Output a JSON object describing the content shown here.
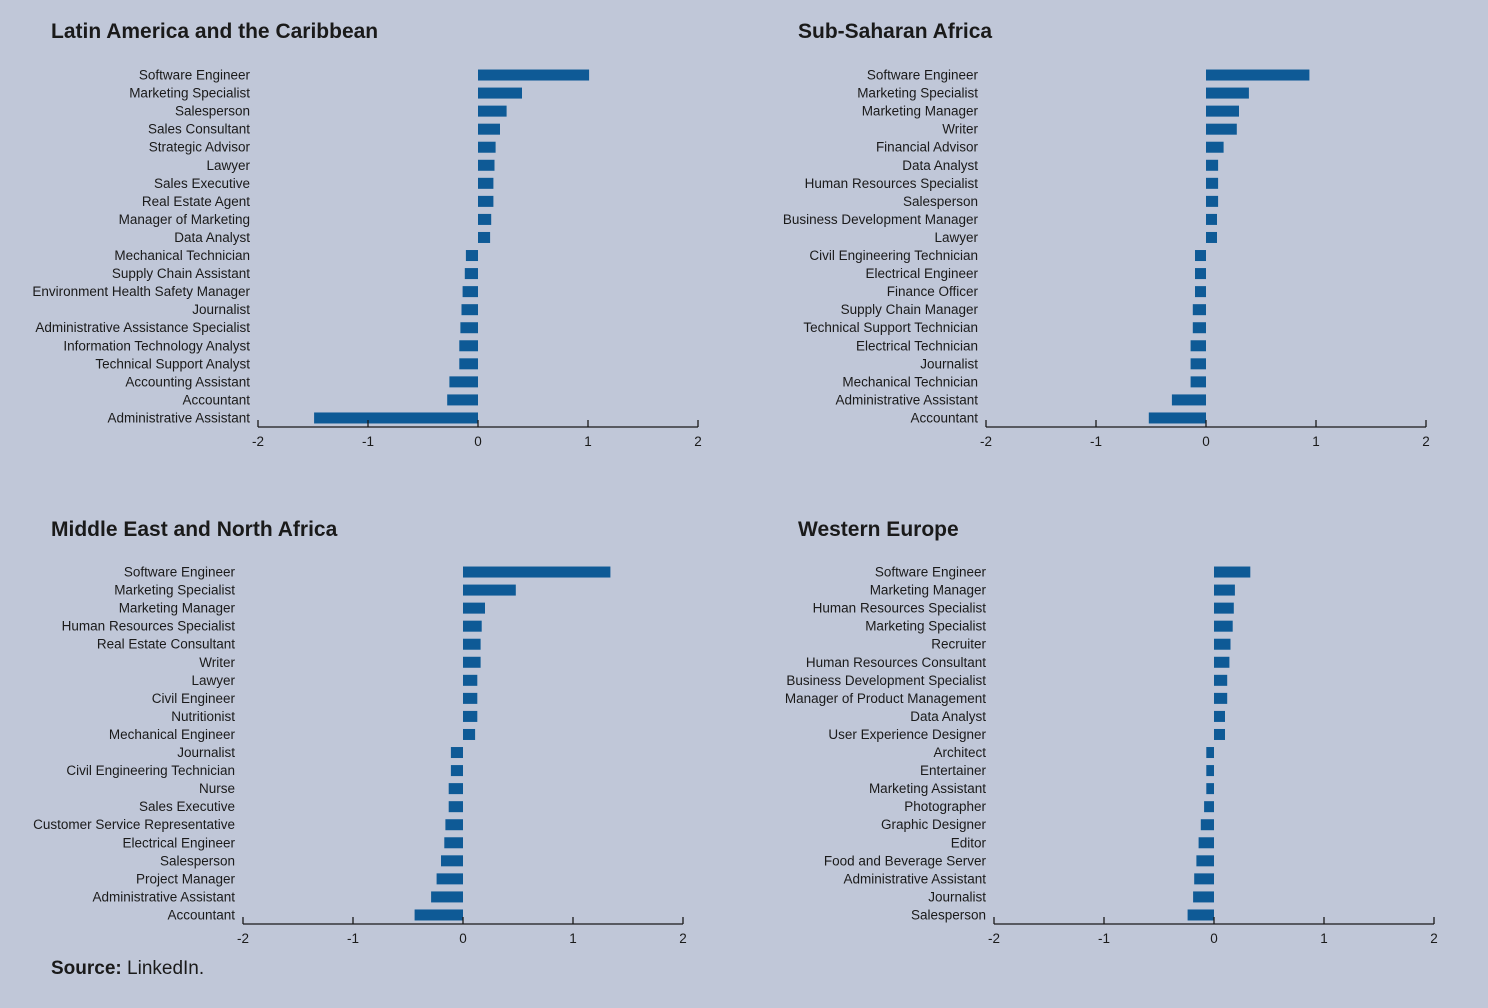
{
  "chart_data": [
    {
      "type": "bar",
      "orientation": "horizontal",
      "title": "Latin America and the Caribbean",
      "xlim": [
        -2,
        2
      ],
      "xticks": [
        -2,
        -1,
        0,
        1,
        2
      ],
      "color": "#0e5a96",
      "categories": [
        "Software Engineer",
        "Marketing Specialist",
        "Salesperson",
        "Sales Consultant",
        "Strategic Advisor",
        "Lawyer",
        "Sales Executive",
        "Real Estate Agent",
        "Manager of Marketing",
        "Data Analyst",
        "Mechanical Technician",
        "Supply Chain Assistant",
        "Environment Health Safety Manager",
        "Journalist",
        "Administrative Assistance Specialist",
        "Information Technology Analyst",
        "Technical Support Analyst",
        "Accounting Assistant",
        "Accountant",
        "Administrative Assistant"
      ],
      "values": [
        1.01,
        0.4,
        0.26,
        0.2,
        0.16,
        0.15,
        0.14,
        0.14,
        0.12,
        0.11,
        -0.11,
        -0.12,
        -0.14,
        -0.15,
        -0.16,
        -0.17,
        -0.17,
        -0.26,
        -0.28,
        -1.49
      ]
    },
    {
      "type": "bar",
      "orientation": "horizontal",
      "title": "Sub-Saharan Africa",
      "xlim": [
        -2,
        2
      ],
      "xticks": [
        -2,
        -1,
        0,
        1,
        2
      ],
      "color": "#0e5a96",
      "categories": [
        "Software Engineer",
        "Marketing Specialist",
        "Marketing Manager",
        "Writer",
        "Financial Advisor",
        "Data Analyst",
        "Human Resources Specialist",
        "Salesperson",
        "Business Development Manager",
        "Lawyer",
        "Civil Engineering Technician",
        "Electrical Engineer",
        "Finance Officer",
        "Supply Chain Manager",
        "Technical Support Technician",
        "Electrical Technician",
        "Journalist",
        "Mechanical Technician",
        "Administrative Assistant",
        "Accountant"
      ],
      "values": [
        0.94,
        0.39,
        0.3,
        0.28,
        0.16,
        0.11,
        0.11,
        0.11,
        0.1,
        0.1,
        -0.1,
        -0.1,
        -0.1,
        -0.12,
        -0.12,
        -0.14,
        -0.14,
        -0.14,
        -0.31,
        -0.52
      ]
    },
    {
      "type": "bar",
      "orientation": "horizontal",
      "title": "Middle East and North Africa",
      "xlim": [
        -2,
        2
      ],
      "xticks": [
        -2,
        -1,
        0,
        1,
        2
      ],
      "color": "#0e5a96",
      "categories": [
        "Software Engineer",
        "Marketing Specialist",
        "Marketing Manager",
        "Human Resources Specialist",
        "Real Estate Consultant",
        "Writer",
        "Lawyer",
        "Civil Engineer",
        "Nutritionist",
        "Mechanical Engineer",
        "Journalist",
        "Civil Engineering Technician",
        "Nurse",
        "Sales Executive",
        "Customer Service Representative",
        "Electrical Engineer",
        "Salesperson",
        "Project Manager",
        "Administrative Assistant",
        "Accountant"
      ],
      "values": [
        1.34,
        0.48,
        0.2,
        0.17,
        0.16,
        0.16,
        0.13,
        0.13,
        0.13,
        0.11,
        -0.11,
        -0.11,
        -0.13,
        -0.13,
        -0.16,
        -0.17,
        -0.2,
        -0.24,
        -0.29,
        -0.44
      ]
    },
    {
      "type": "bar",
      "orientation": "horizontal",
      "title": "Western Europe",
      "xlim": [
        -2,
        2
      ],
      "xticks": [
        -2,
        -1,
        0,
        1,
        2
      ],
      "color": "#0e5a96",
      "categories": [
        "Software Engineer",
        "Marketing Manager",
        "Human Resources Specialist",
        "Marketing Specialist",
        "Recruiter",
        "Human Resources Consultant",
        "Business Development Specialist",
        "Manager of Product Management",
        "Data Analyst",
        "User Experience Designer",
        "Architect",
        "Entertainer",
        "Marketing Assistant",
        "Photographer",
        "Graphic Designer",
        "Editor",
        "Food and Beverage Server",
        "Administrative Assistant",
        "Journalist",
        "Salesperson"
      ],
      "values": [
        0.33,
        0.19,
        0.18,
        0.17,
        0.15,
        0.14,
        0.12,
        0.12,
        0.1,
        0.1,
        -0.07,
        -0.07,
        -0.07,
        -0.09,
        -0.12,
        -0.14,
        -0.16,
        -0.18,
        -0.19,
        -0.24
      ]
    }
  ],
  "source": {
    "label": "Source:",
    "text": " LinkedIn."
  }
}
